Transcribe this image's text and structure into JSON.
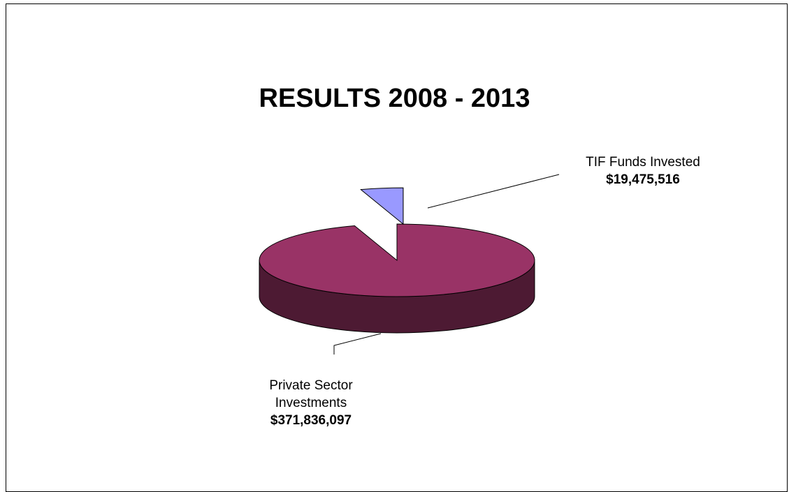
{
  "chart_data": {
    "type": "pie",
    "title": "RESULTS 2008 - 2013",
    "slices": [
      {
        "label": "Private Sector Investments",
        "value": 371836097,
        "value_label": "$371,836,097",
        "color": "#993366"
      },
      {
        "label": "TIF Funds Invested",
        "value": 19475516,
        "value_label": "$19,475,516",
        "color": "#9999FF"
      }
    ],
    "style": "3d-exploded"
  }
}
